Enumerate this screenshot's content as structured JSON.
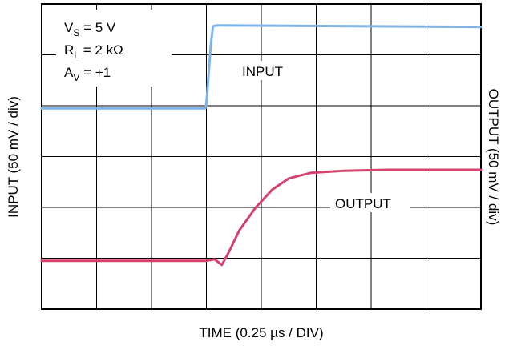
{
  "chart_data": {
    "type": "line",
    "title": "",
    "xlabel": "TIME (0.25 µs / DIV)",
    "ylabel_left": "INPUT (50 mV / div)",
    "ylabel_right": "OUTPUT (50 mV / div)",
    "grid": true,
    "x_divisions": 8,
    "y_divisions": 6,
    "xlim": [
      0,
      8
    ],
    "ylim": [
      0,
      6
    ],
    "annotations": [
      {
        "main": "V",
        "sub": "S",
        "rest": " = 5 V"
      },
      {
        "main": "R",
        "sub": "L",
        "rest": " = 2 kΩ"
      },
      {
        "main": "A",
        "sub": "V",
        "rest": " = +1"
      }
    ],
    "series": [
      {
        "name": "INPUT",
        "color": "#7db4ea",
        "points": [
          [
            0,
            3.95
          ],
          [
            2.98,
            3.95
          ],
          [
            3.0,
            4.05
          ],
          [
            3.04,
            4.6
          ],
          [
            3.08,
            5.2
          ],
          [
            3.12,
            5.56
          ],
          [
            3.2,
            5.58
          ],
          [
            8,
            5.55
          ]
        ]
      },
      {
        "name": "OUTPUT",
        "color": "#d6426e",
        "points": [
          [
            0,
            0.95
          ],
          [
            3.0,
            0.95
          ],
          [
            3.15,
            0.98
          ],
          [
            3.28,
            0.87
          ],
          [
            3.4,
            1.1
          ],
          [
            3.6,
            1.55
          ],
          [
            3.9,
            2.0
          ],
          [
            4.2,
            2.35
          ],
          [
            4.5,
            2.57
          ],
          [
            4.9,
            2.68
          ],
          [
            5.5,
            2.72
          ],
          [
            6.3,
            2.74
          ],
          [
            8,
            2.74
          ]
        ]
      }
    ]
  }
}
